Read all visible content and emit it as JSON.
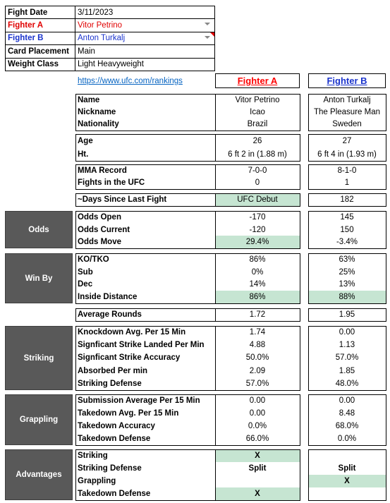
{
  "info": {
    "rows": [
      [
        "Fight Date",
        "3/11/2023"
      ],
      [
        "Fighter A",
        "Vitor Petrino"
      ],
      [
        "Fighter B",
        "Anton Turkalj"
      ],
      [
        "Card Placement",
        "Main"
      ],
      [
        "Weight Class",
        "Light Heavyweight"
      ]
    ]
  },
  "link": "https://www.ufc.com/rankings",
  "headers": [
    "Fighter A",
    "Fighter B"
  ],
  "blocks": [
    {
      "rows": [
        [
          "Name",
          "Vitor Petrino",
          "Anton Turkalj"
        ],
        [
          "Nickname",
          "Icao",
          "The Pleasure Man"
        ],
        [
          "Nationality",
          "Brazil",
          "Sweden"
        ]
      ]
    },
    {
      "rows": [
        [
          "Age",
          "26",
          "27"
        ],
        [
          "Ht.",
          "6 ft 2 in (1.88 m)",
          "6 ft 4 in (1.93 m)"
        ]
      ]
    },
    {
      "rows": [
        [
          "MMA Record",
          "7-0-0",
          "8-1-0"
        ],
        [
          "Fights in the UFC",
          "0",
          "1"
        ]
      ]
    },
    {
      "rows": [
        [
          "~Days Since Last Fight",
          "UFC Debut",
          "182"
        ]
      ]
    },
    {
      "section": "Odds",
      "rows": [
        [
          "Odds Open",
          "-170",
          "145"
        ],
        [
          "Odds Current",
          "-120",
          "150"
        ],
        [
          "Odds Move",
          "29.4%",
          "-3.4%"
        ]
      ]
    },
    {
      "section": "Win By",
      "rows": [
        [
          "KO/TKO",
          "86%",
          "63%"
        ],
        [
          "Sub",
          "0%",
          "25%"
        ],
        [
          "Dec",
          "14%",
          "13%"
        ],
        [
          "Inside Distance",
          "86%",
          "88%"
        ]
      ]
    },
    {
      "rows": [
        [
          "Average Rounds",
          "1.72",
          "1.95"
        ]
      ]
    },
    {
      "section": "Striking",
      "rows": [
        [
          "Knockdown Avg. Per 15 Min",
          "1.74",
          "0.00"
        ],
        [
          "Signficant Strike Landed Per Min",
          "4.88",
          "1.13"
        ],
        [
          "Signficant Strike Accuracy",
          "50.0%",
          "57.0%"
        ],
        [
          "Absorbed Per min",
          "2.09",
          "1.85"
        ],
        [
          "Striking Defense",
          "57.0%",
          "48.0%"
        ]
      ]
    },
    {
      "section": "Grappling",
      "rows": [
        [
          "Submission Average  Per 15 Min",
          "0.00",
          "0.00"
        ],
        [
          "Takedown Avg. Per 15 Min",
          "0.00",
          "8.48"
        ],
        [
          "Takedown Accuracy",
          "0.0%",
          "68.0%"
        ],
        [
          "Takedown Defense",
          "66.0%",
          "0.0%"
        ]
      ]
    },
    {
      "section": "Advantages",
      "rows": [
        [
          "Striking",
          "X",
          null
        ],
        [
          "Striking Defense",
          "Split",
          "Split"
        ],
        [
          "Grappling",
          null,
          "X"
        ],
        [
          "Takedown Defense",
          "X",
          null
        ]
      ]
    }
  ]
}
